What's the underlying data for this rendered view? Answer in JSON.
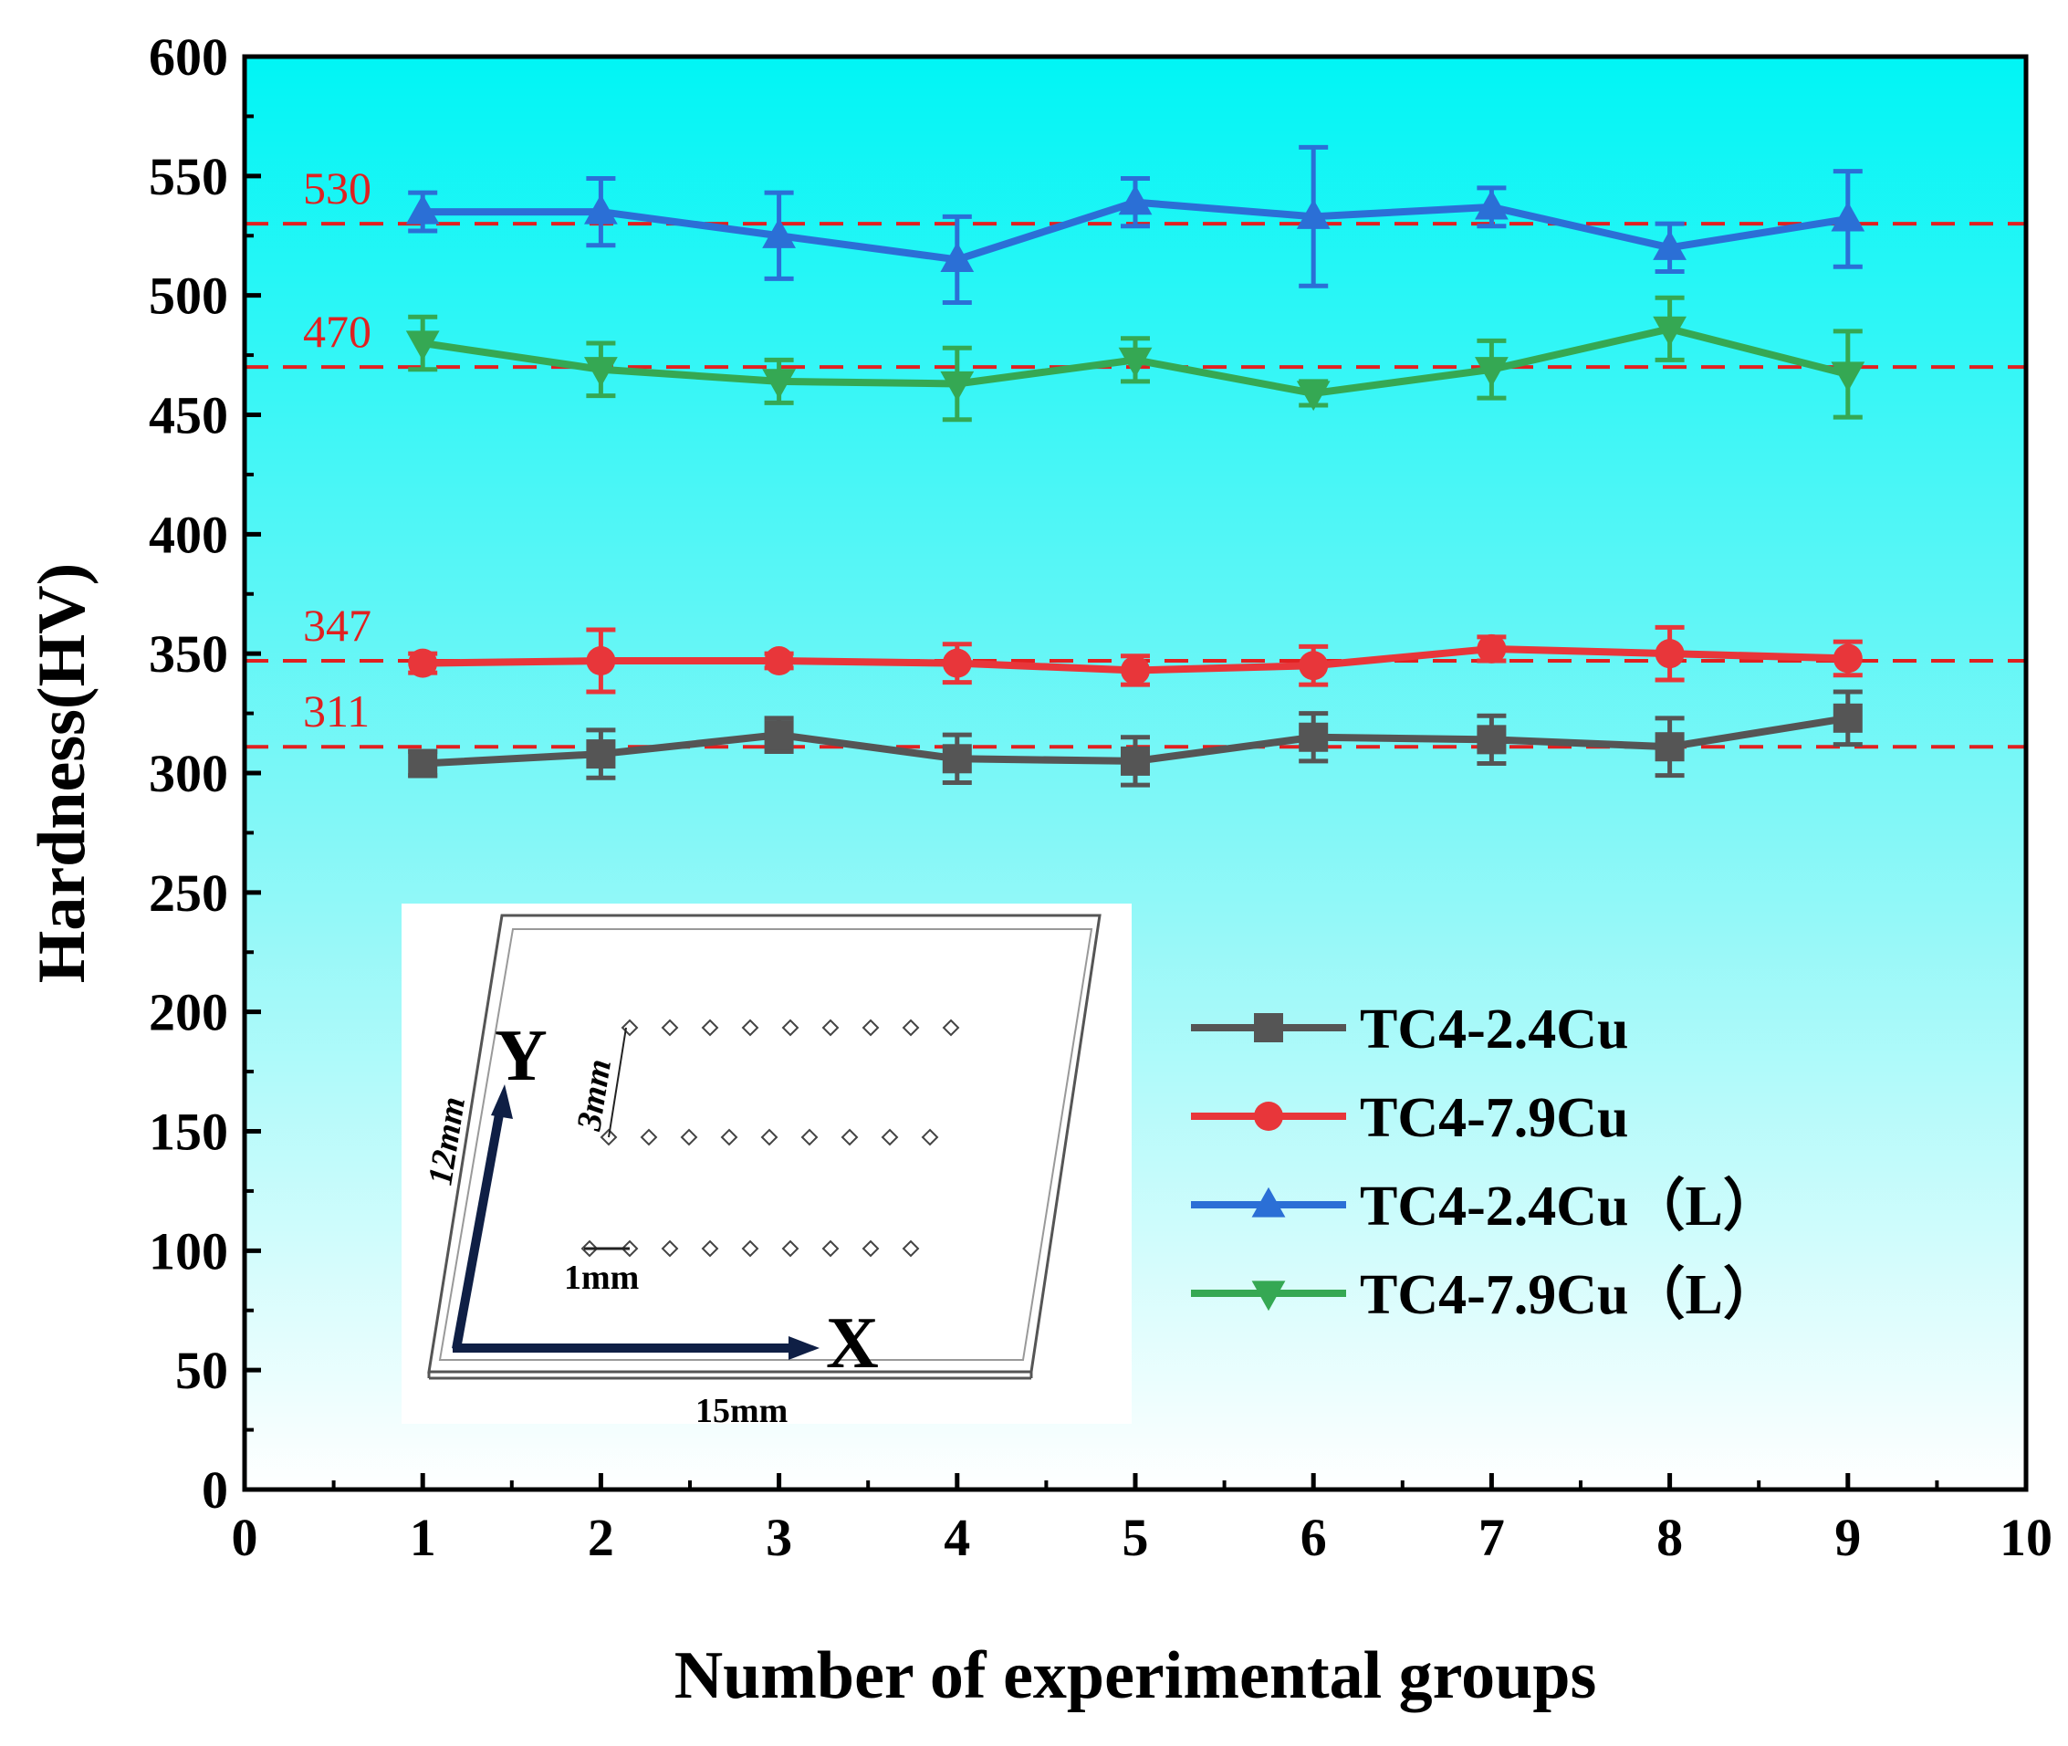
{
  "chart_data": {
    "type": "line",
    "xlabel": "Number of experimental groups",
    "ylabel": "Hardness(HV)",
    "xlim": [
      0,
      10
    ],
    "ylim": [
      0,
      600
    ],
    "xticks": [
      0,
      1,
      2,
      3,
      4,
      5,
      6,
      7,
      8,
      9,
      10
    ],
    "yticks": [
      0,
      50,
      100,
      150,
      200,
      250,
      300,
      350,
      400,
      450,
      500,
      550,
      600
    ],
    "x": [
      1,
      2,
      3,
      4,
      5,
      6,
      7,
      8,
      9
    ],
    "series": [
      {
        "name": "TC4-2.4Cu",
        "color": "#555555",
        "marker": "square",
        "values": [
          304,
          308,
          316,
          306,
          305,
          315,
          314,
          311,
          323
        ],
        "errors": [
          5,
          10,
          7,
          10,
          10,
          10,
          10,
          12,
          11
        ]
      },
      {
        "name": "TC4-7.9Cu",
        "color": "#e8363a",
        "marker": "circle",
        "values": [
          346,
          347,
          347,
          346,
          343,
          345,
          352,
          350,
          348
        ],
        "errors": [
          4,
          13,
          3,
          8,
          6,
          8,
          5,
          11,
          7
        ]
      },
      {
        "name": "TC4-2.4Cu（L）",
        "color": "#2b6fd6",
        "marker": "triangle-up",
        "values": [
          535,
          535,
          525,
          515,
          539,
          533,
          537,
          520,
          532
        ],
        "errors": [
          8,
          14,
          18,
          18,
          10,
          29,
          8,
          10,
          20
        ]
      },
      {
        "name": "TC4-7.9Cu（L）",
        "color": "#35a853",
        "marker": "triangle-down",
        "values": [
          480,
          469,
          464,
          463,
          473,
          459,
          469,
          486,
          467
        ],
        "errors": [
          11,
          11,
          9,
          15,
          9,
          5,
          12,
          13,
          18
        ]
      }
    ],
    "reference_lines": [
      {
        "value": 530,
        "label": "530",
        "color": "#e02020"
      },
      {
        "value": 470,
        "label": "470",
        "color": "#e02020"
      },
      {
        "value": 347,
        "label": "347",
        "color": "#e02020"
      },
      {
        "value": 311,
        "label": "311",
        "color": "#e02020"
      }
    ],
    "legend_position": "middle-right",
    "background_gradient": [
      "#00f5f5",
      "#ffffff"
    ],
    "inset": {
      "y_axis": "Y",
      "x_axis": "X",
      "height_label": "12mm",
      "width_label": "15mm",
      "row_spacing_label": "3mm",
      "point_spacing_label": "1mm"
    }
  }
}
